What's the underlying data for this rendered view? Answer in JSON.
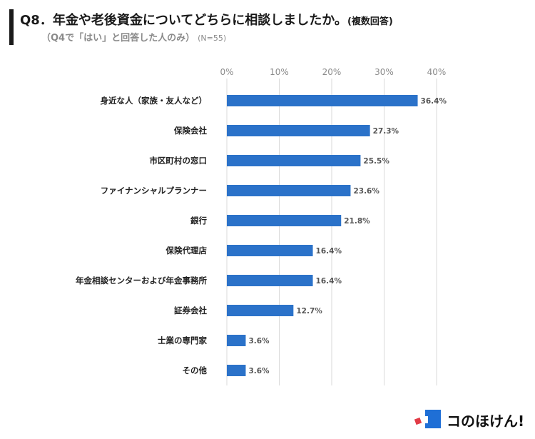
{
  "header": {
    "title": "Q8．年金や老後資金についてどちらに相談しましたか。",
    "title_note": "(複数回答)",
    "subtitle": "（Q4で「はい」と回答した人のみ）",
    "sample_note": "(N=55)"
  },
  "brand": {
    "logo_text": "コのほけん!",
    "blue": "#1f6fd6",
    "red": "#e23b46"
  },
  "chart_data": {
    "type": "bar",
    "orientation": "horizontal",
    "categories": [
      "身近な人（家族・友人など）",
      "保険会社",
      "市区町村の窓口",
      "ファイナンシャルプランナー",
      "銀行",
      "保険代理店",
      "年金相談センターおよび年金事務所",
      "証券会社",
      "士業の専門家",
      "その他"
    ],
    "values": [
      36.4,
      27.3,
      25.5,
      23.6,
      21.8,
      16.4,
      16.4,
      12.7,
      3.6,
      3.6
    ],
    "value_labels": [
      "36.4%",
      "27.3%",
      "25.5%",
      "23.6%",
      "21.8%",
      "16.4%",
      "16.4%",
      "12.7%",
      "3.6%",
      "3.6%"
    ],
    "xlim": [
      0,
      40
    ],
    "xticks": [
      0,
      10,
      20,
      30,
      40
    ],
    "xtick_labels": [
      "0%",
      "10%",
      "20%",
      "30%",
      "40%"
    ],
    "axis_position": "top",
    "grid": true,
    "bar_color": "#2b72c9",
    "grid_color": "#d9d9d9"
  }
}
